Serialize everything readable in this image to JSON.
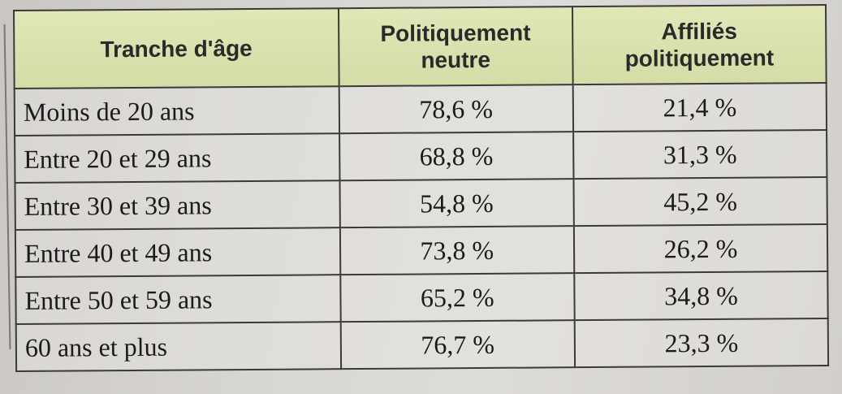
{
  "table": {
    "headers": {
      "age": "Tranche d'âge",
      "neutre_line1": "Politiquement",
      "neutre_line2": "neutre",
      "affilies_line1": "Affiliés",
      "affilies_line2": "politiquement"
    },
    "rows": [
      {
        "age": "Moins de 20 ans",
        "neutre": "78,6 %",
        "affilies": "21,4 %"
      },
      {
        "age": "Entre 20 et 29 ans",
        "neutre": "68,8 %",
        "affilies": "31,3 %"
      },
      {
        "age": "Entre 30 et 39 ans",
        "neutre": "54,8 %",
        "affilies": "45,2 %"
      },
      {
        "age": "Entre 40 et 49 ans",
        "neutre": "73,8 %",
        "affilies": "26,2 %"
      },
      {
        "age": "Entre 50 et 59 ans",
        "neutre": "65,2 %",
        "affilies": "34,8 %"
      },
      {
        "age": "60 ans et plus",
        "neutre": "76,7 %",
        "affilies": "23,3 %"
      }
    ]
  },
  "colors": {
    "header_bg": "#dde3ae",
    "border": "#3a3a3a",
    "paper": "#dad8d4"
  }
}
